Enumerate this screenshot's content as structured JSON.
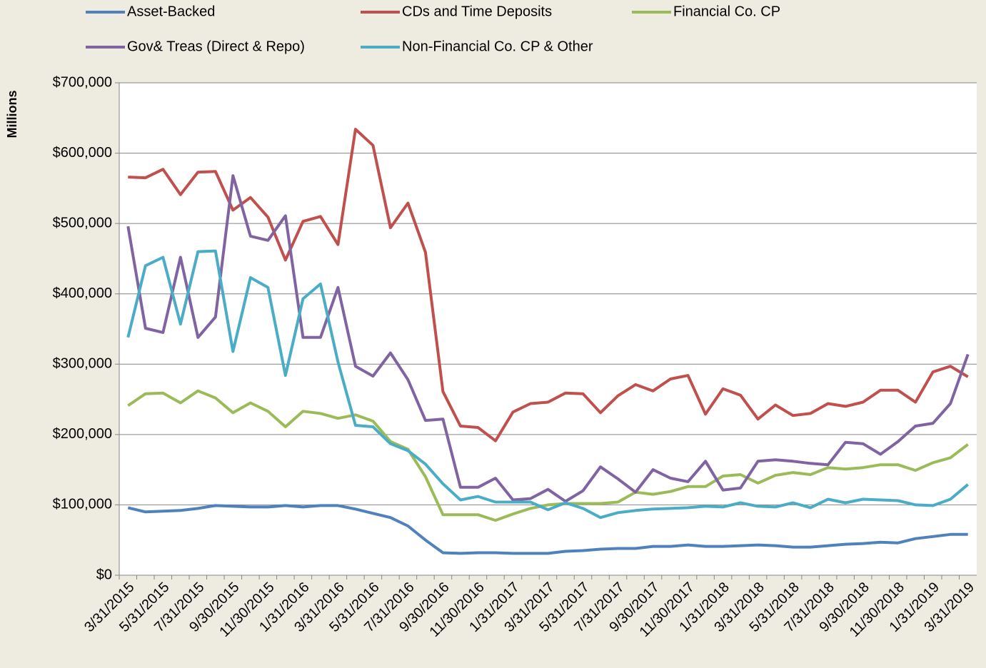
{
  "chart_data": {
    "type": "line",
    "y_label": "Millions",
    "categories": [
      "3/31/2015",
      null,
      "5/31/2015",
      null,
      "7/31/2015",
      null,
      "9/30/2015",
      null,
      "11/30/2015",
      null,
      "1/31/2016",
      null,
      "3/31/2016",
      null,
      "5/31/2016",
      null,
      "7/31/2016",
      null,
      "9/30/2016",
      null,
      "11/30/2016",
      null,
      "1/31/2017",
      null,
      "3/31/2017",
      null,
      "5/31/2017",
      null,
      "7/31/2017",
      null,
      "9/30/2017",
      null,
      "11/30/2017",
      null,
      "1/31/2018",
      null,
      "3/31/2018",
      null,
      "5/31/2018",
      null,
      "7/31/2018",
      null,
      "9/30/2018",
      null,
      "11/30/2018",
      null,
      "1/31/2019",
      null,
      "3/31/2019"
    ],
    "series": [
      {
        "name": "Asset-Backed",
        "color": "#4f81bd",
        "values": [
          96000,
          90000,
          91000,
          92000,
          95000,
          99000,
          98000,
          97000,
          97000,
          99000,
          97000,
          99000,
          99000,
          94000,
          88000,
          82000,
          70000,
          50000,
          32000,
          31000,
          32000,
          32000,
          31000,
          31000,
          31000,
          34000,
          35000,
          37000,
          38000,
          38000,
          41000,
          41000,
          43000,
          41000,
          41000,
          42000,
          43000,
          42000,
          40000,
          40000,
          42000,
          44000,
          45000,
          47000,
          46000,
          52000,
          55000,
          58000,
          58000
        ]
      },
      {
        "name": "CDs and Time Deposits",
        "color": "#c0504d",
        "values": [
          566000,
          565000,
          577000,
          541000,
          573000,
          574000,
          519000,
          537000,
          509000,
          448000,
          503000,
          510000,
          470000,
          634000,
          611000,
          494000,
          529000,
          459000,
          261000,
          212000,
          210000,
          191000,
          232000,
          244000,
          246000,
          259000,
          258000,
          231000,
          255000,
          271000,
          262000,
          279000,
          284000,
          229000,
          265000,
          256000,
          222000,
          242000,
          227000,
          230000,
          244000,
          240000,
          246000,
          263000,
          263000,
          246000,
          289000,
          297000,
          282000
        ]
      },
      {
        "name": "Financial Co. CP",
        "color": "#9bbb59",
        "values": [
          241000,
          258000,
          259000,
          245000,
          262000,
          252000,
          231000,
          245000,
          233000,
          211000,
          233000,
          230000,
          223000,
          228000,
          219000,
          190000,
          179000,
          140000,
          86000,
          86000,
          86000,
          78000,
          87000,
          95000,
          100000,
          102000,
          102000,
          102000,
          104000,
          118000,
          115000,
          119000,
          126000,
          126000,
          141000,
          143000,
          131000,
          142000,
          146000,
          143000,
          153000,
          151000,
          153000,
          157000,
          157000,
          149000,
          160000,
          167000,
          186000
        ]
      },
      {
        "name": "Gov& Treas (Direct & Repo)",
        "color": "#8064a2",
        "values": [
          496000,
          351000,
          345000,
          452000,
          338000,
          367000,
          568000,
          482000,
          476000,
          511000,
          338000,
          338000,
          409000,
          297000,
          283000,
          316000,
          278000,
          220000,
          222000,
          125000,
          125000,
          138000,
          107000,
          109000,
          122000,
          105000,
          120000,
          154000,
          137000,
          118000,
          150000,
          138000,
          133000,
          162000,
          121000,
          124000,
          162000,
          164000,
          162000,
          159000,
          157000,
          189000,
          187000,
          172000,
          190000,
          212000,
          216000,
          244000,
          314000
        ]
      },
      {
        "name": "Non-Financial Co. CP & Other",
        "color": "#4bacc6",
        "values": [
          338000,
          440000,
          452000,
          357000,
          460000,
          461000,
          318000,
          423000,
          409000,
          284000,
          393000,
          414000,
          303000,
          213000,
          211000,
          187000,
          177000,
          158000,
          130000,
          107000,
          112000,
          104000,
          104000,
          104000,
          93000,
          103000,
          95000,
          82000,
          89000,
          92000,
          94000,
          95000,
          96000,
          98000,
          97000,
          103000,
          98000,
          97000,
          103000,
          96000,
          108000,
          103000,
          108000,
          107000,
          106000,
          100000,
          99000,
          108000,
          129000
        ]
      }
    ],
    "ylim": [
      0,
      700000
    ],
    "yticks": [
      {
        "value": 0,
        "label": "$0"
      },
      {
        "value": 100000,
        "label": "$100,000"
      },
      {
        "value": 200000,
        "label": "$200,000"
      },
      {
        "value": 300000,
        "label": "$300,000"
      },
      {
        "value": 400000,
        "label": "$400,000"
      },
      {
        "value": 500000,
        "label": "$500,000"
      },
      {
        "value": 600000,
        "label": "$600,000"
      },
      {
        "value": 700000,
        "label": "$700,000"
      }
    ],
    "grid": true,
    "legend": "top"
  }
}
